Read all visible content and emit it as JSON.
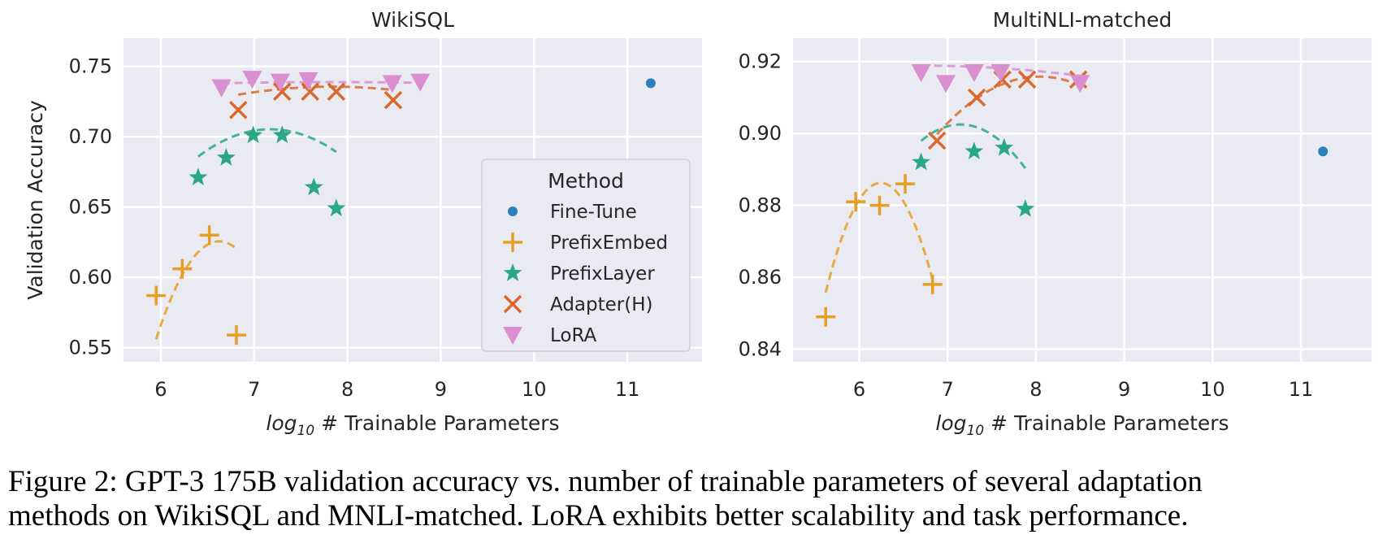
{
  "chart_data": [
    {
      "type": "scatter",
      "title": "WikiSQL",
      "xlabel_prefix": "log",
      "xlabel_sub": "10",
      "xlabel_rest": " # Trainable Parameters",
      "ylabel": "Validation Accuracy",
      "xlim": [
        5.6,
        11.8
      ],
      "ylim": [
        0.54,
        0.77
      ],
      "xticks": [
        "6",
        "7",
        "8",
        "9",
        "10",
        "11"
      ],
      "yticks": [
        "0.55",
        "0.60",
        "0.65",
        "0.70",
        "0.75"
      ],
      "grid": true,
      "legend": "center-right",
      "series": [
        {
          "name": "Fine-Tune",
          "marker": "dot",
          "color": "#2c7fb8",
          "points": [
            [
              11.25,
              0.738
            ]
          ]
        },
        {
          "name": "PrefixEmbed",
          "marker": "plus",
          "color": "#e69f24",
          "points": [
            [
              5.95,
              0.587
            ],
            [
              6.23,
              0.606
            ],
            [
              6.52,
              0.63
            ],
            [
              6.81,
              0.559
            ]
          ],
          "fit": [
            -0.153,
            2.027,
            -6.088
          ]
        },
        {
          "name": "PrefixLayer",
          "marker": "star",
          "color": "#2aa884",
          "points": [
            [
              6.4,
              0.671
            ],
            [
              6.7,
              0.685
            ],
            [
              6.99,
              0.701
            ],
            [
              7.3,
              0.701
            ],
            [
              7.64,
              0.664
            ],
            [
              7.88,
              0.649
            ]
          ],
          "fit": [
            -0.0324,
            0.4649,
            -0.9624
          ]
        },
        {
          "name": "Adapter(H)",
          "marker": "x",
          "color": "#d9692d",
          "points": [
            [
              6.83,
              0.719
            ],
            [
              7.3,
              0.732
            ],
            [
              7.6,
              0.732
            ],
            [
              7.88,
              0.732
            ],
            [
              8.49,
              0.726
            ]
          ],
          "fit": [
            -0.0055,
            0.0863,
            0.397
          ]
        },
        {
          "name": "LoRA",
          "marker": "tri",
          "color": "#d98fd0",
          "points": [
            [
              6.65,
              0.735
            ],
            [
              6.98,
              0.741
            ],
            [
              7.28,
              0.739
            ],
            [
              7.58,
              0.74
            ],
            [
              8.48,
              0.738
            ],
            [
              8.78,
              0.739
            ]
          ],
          "fit": [
            -0.0006,
            0.0094,
            0.702
          ]
        }
      ]
    },
    {
      "type": "scatter",
      "title": "MultiNLI-matched",
      "xlabel_prefix": "log",
      "xlabel_sub": "10",
      "xlabel_rest": " # Trainable Parameters",
      "ylabel": "",
      "xlim": [
        5.25,
        11.8
      ],
      "ylim": [
        0.8365,
        0.9265
      ],
      "xticks": [
        "6",
        "7",
        "8",
        "9",
        "10",
        "11"
      ],
      "yticks": [
        "0.84",
        "0.86",
        "0.88",
        "0.90",
        "0.92"
      ],
      "grid": true,
      "legend": "",
      "series": [
        {
          "name": "Fine-Tune",
          "marker": "dot",
          "color": "#2c7fb8",
          "points": [
            [
              11.25,
              0.895
            ]
          ]
        },
        {
          "name": "PrefixEmbed",
          "marker": "plus",
          "color": "#e69f24",
          "points": [
            [
              5.62,
              0.849
            ],
            [
              5.96,
              0.881
            ],
            [
              6.23,
              0.88
            ],
            [
              6.52,
              0.886
            ],
            [
              6.83,
              0.858
            ]
          ],
          "fit": [
            -0.0784,
            0.979,
            -2.17
          ]
        },
        {
          "name": "PrefixLayer",
          "marker": "star",
          "color": "#2aa884",
          "points": [
            [
              6.7,
              0.892
            ],
            [
              7.3,
              0.895
            ],
            [
              7.64,
              0.896
            ],
            [
              7.88,
              0.879
            ]
          ],
          "fit": [
            -0.0227,
            0.3245,
            -0.2572
          ]
        },
        {
          "name": "Adapter(H)",
          "marker": "x",
          "color": "#d9692d",
          "points": [
            [
              6.88,
              0.898
            ],
            [
              7.33,
              0.91
            ],
            [
              7.62,
              0.915
            ],
            [
              7.9,
              0.915
            ],
            [
              8.48,
              0.915
            ]
          ],
          "fit": [
            -0.0119,
            0.1914,
            0.1462
          ]
        },
        {
          "name": "LoRA",
          "marker": "tri",
          "color": "#d98fd0",
          "points": [
            [
              6.7,
              0.917
            ],
            [
              6.98,
              0.914
            ],
            [
              7.3,
              0.917
            ],
            [
              7.6,
              0.917
            ],
            [
              8.5,
              0.914
            ]
          ],
          "fit": [
            -0.0009,
            0.0121,
            0.8782
          ]
        }
      ]
    }
  ],
  "legend": {
    "title": "Method",
    "items": [
      "Fine-Tune",
      "PrefixEmbed",
      "PrefixLayer",
      "Adapter(H)",
      "LoRA"
    ]
  },
  "caption": {
    "line1": "Figure 2: GPT-3 175B validation accuracy vs. number of trainable parameters of several adaptation",
    "line2": "methods on WikiSQL and MNLI-matched. LoRA exhibits better scalability and task performance."
  }
}
